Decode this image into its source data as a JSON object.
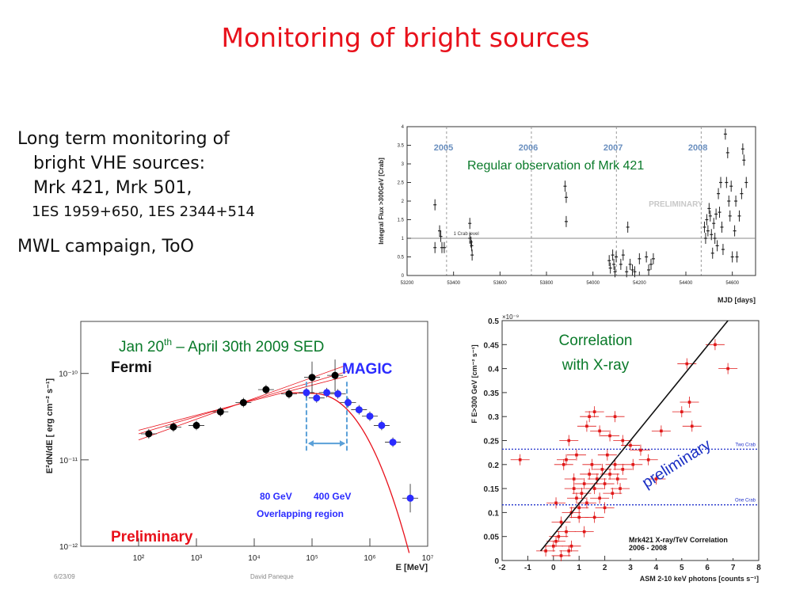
{
  "slide": {
    "title": "Monitoring of bright sources",
    "bullets": {
      "line1": "Long term monitoring of",
      "line2": "bright VHE sources:",
      "line3": "Mrk 421, Mrk 501,",
      "line4": "1ES 1959+650, 1ES 2344+514",
      "line5": "MWL campaign, ToO"
    }
  },
  "chart_data": [
    {
      "type": "scatter",
      "title": "",
      "annotation": "Regular observation of Mrk 421",
      "xlabel": "MJD [days]",
      "ylabel": "Integral Flux >300GeV [Crab]",
      "xlim": [
        53200,
        54700
      ],
      "ylim": [
        0,
        4
      ],
      "xticks": [
        "53200",
        "53400",
        "53600",
        "53800",
        "54000",
        "54200",
        "54400",
        "54600"
      ],
      "yticks": [
        "0",
        "0.5",
        "1",
        "1.5",
        "2",
        "2.5",
        "3",
        "3.5",
        "4"
      ],
      "year_labels": [
        "2005",
        "2006",
        "2007",
        "2008"
      ],
      "year_bounds": [
        53370,
        53735,
        54101,
        54466
      ],
      "reference_line": {
        "label": "1 Crab level",
        "y": 1
      },
      "watermark": "PRELIMINARY",
      "points": [
        [
          53320,
          1.9
        ],
        [
          53320,
          0.75
        ],
        [
          53340,
          1.2
        ],
        [
          53345,
          1.05
        ],
        [
          53350,
          0.75
        ],
        [
          53360,
          0.75
        ],
        [
          53470,
          1.4
        ],
        [
          53470,
          1.0
        ],
        [
          53475,
          0.9
        ],
        [
          53480,
          0.55
        ],
        [
          53478,
          0.8
        ],
        [
          53880,
          2.4
        ],
        [
          53885,
          2.1
        ],
        [
          53885,
          1.45
        ],
        [
          54070,
          0.4
        ],
        [
          54075,
          0.2
        ],
        [
          54085,
          0.55
        ],
        [
          54090,
          0.3
        ],
        [
          54095,
          0.1
        ],
        [
          54100,
          0.5
        ],
        [
          54120,
          0.3
        ],
        [
          54130,
          0.55
        ],
        [
          54145,
          0.1
        ],
        [
          54150,
          1.3
        ],
        [
          54160,
          0.3
        ],
        [
          54170,
          0.15
        ],
        [
          54180,
          0.1
        ],
        [
          54200,
          0.45
        ],
        [
          54230,
          0.5
        ],
        [
          54240,
          0.15
        ],
        [
          54250,
          0.3
        ],
        [
          54260,
          0.45
        ],
        [
          54480,
          1.3
        ],
        [
          54485,
          1.0
        ],
        [
          54490,
          1.5
        ],
        [
          54495,
          1.2
        ],
        [
          54500,
          1.8
        ],
        [
          54505,
          1.6
        ],
        [
          54510,
          1.1
        ],
        [
          54515,
          0.6
        ],
        [
          54520,
          1.4
        ],
        [
          54525,
          1.0
        ],
        [
          54530,
          1.65
        ],
        [
          54535,
          0.8
        ],
        [
          54540,
          2.2
        ],
        [
          54545,
          1.7
        ],
        [
          54550,
          2.5
        ],
        [
          54555,
          1.3
        ],
        [
          54560,
          0.7
        ],
        [
          54570,
          3.8
        ],
        [
          54575,
          2.5
        ],
        [
          54580,
          3.3
        ],
        [
          54585,
          2.0
        ],
        [
          54590,
          1.6
        ],
        [
          54595,
          2.4
        ],
        [
          54600,
          0.5
        ],
        [
          54610,
          1.2
        ],
        [
          54615,
          2.0
        ],
        [
          54620,
          0.5
        ],
        [
          54630,
          1.6
        ],
        [
          54640,
          2.2
        ],
        [
          54645,
          3.4
        ],
        [
          54650,
          3.1
        ],
        [
          54660,
          2.5
        ]
      ]
    },
    {
      "type": "scatter",
      "title": "",
      "annotation": "Jan 20th – April 30th 2009 SED",
      "annotation_sup": "th",
      "annotation_parts": [
        "Jan 20",
        " – April 30th 2009 SED"
      ],
      "xlabel": "E [MeV]",
      "ylabel": "E²dN/dE [ erg cm⁻² s⁻¹]",
      "xscale": "log",
      "yscale": "log",
      "xlim": [
        10,
        10000000.0
      ],
      "ylim": [
        1e-12,
        4e-10
      ],
      "xticks": [
        "10²",
        "10³",
        "10⁴",
        "10⁵",
        "10⁶",
        "10⁷"
      ],
      "yticks": [
        "10⁻¹²",
        "10⁻¹¹",
        "10⁻¹⁰"
      ],
      "labels": [
        "Fermi",
        "MAGIC",
        "Preliminary",
        "80 GeV",
        "400 GeV",
        "Overlapping region"
      ],
      "footer": [
        "6/23/09",
        "David Paneque"
      ],
      "series": [
        {
          "name": "Fermi",
          "color": "#000000",
          "x": [
            150,
            400,
            1000,
            2600,
            6500,
            16000,
            40000,
            100000,
            250000
          ],
          "y": [
            2e-11,
            2.4e-11,
            2.5e-11,
            3.6e-11,
            4.6e-11,
            6.5e-11,
            5.8e-11,
            9e-11,
            9.5e-11
          ]
        },
        {
          "name": "MAGIC",
          "color": "#2b2bff",
          "x": [
            80000,
            120000,
            180000,
            280000,
            420000,
            650000,
            1000000,
            1600000,
            2500000,
            5000000
          ],
          "y": [
            6e-11,
            5.2e-11,
            6e-11,
            5.8e-11,
            4.6e-11,
            3.8e-11,
            3.2e-11,
            2.5e-11,
            1.6e-11,
            3.6e-12
          ]
        }
      ]
    },
    {
      "type": "scatter",
      "title": "",
      "annotation": "Correlation with X-ray",
      "annotation_lines": [
        "Correlation",
        "with X-ray"
      ],
      "xlabel": "ASM 2-10 keV photons [counts s⁻¹]",
      "ylabel": "F E>300 GeV [cm⁻² s⁻¹]",
      "y_multiplier": "×10⁻⁹",
      "xlim": [
        -2,
        8
      ],
      "ylim": [
        0,
        0.5
      ],
      "xticks": [
        "-2",
        "-1",
        "0",
        "1",
        "2",
        "3",
        "4",
        "5",
        "6",
        "7",
        "8"
      ],
      "yticks": [
        "0",
        "0.05",
        "0.1",
        "0.15",
        "0.2",
        "0.25",
        "0.3",
        "0.35",
        "0.4",
        "0.45",
        "0.5"
      ],
      "reference_lines": [
        {
          "label": "Two Crab",
          "y": 0.232
        },
        {
          "label": "One Crab",
          "y": 0.116
        }
      ],
      "legend": [
        "Mrk421 X-ray/TeV Correlation",
        "2006 - 2008"
      ],
      "watermark": "preliminary",
      "fit_line": {
        "x": [
          -0.5,
          6.8
        ],
        "y": [
          0.02,
          0.5
        ]
      },
      "points": [
        [
          -1.3,
          0.21
        ],
        [
          -0.3,
          0.02
        ],
        [
          0,
          0.03
        ],
        [
          0.1,
          0.12
        ],
        [
          0.3,
          0.08
        ],
        [
          0.2,
          0.05
        ],
        [
          0.5,
          0.06
        ],
        [
          0.6,
          0.02
        ],
        [
          0.7,
          0.1
        ],
        [
          0.8,
          0.15
        ],
        [
          0.9,
          0.13
        ],
        [
          1.0,
          0.11
        ],
        [
          0.4,
          0.2
        ],
        [
          0.5,
          0.21
        ],
        [
          0.8,
          0.17
        ],
        [
          1.0,
          0.09
        ],
        [
          1.1,
          0.14
        ],
        [
          1.2,
          0.16
        ],
        [
          1.3,
          0.12
        ],
        [
          1.4,
          0.18
        ],
        [
          1.5,
          0.2
        ],
        [
          1.6,
          0.15
        ],
        [
          1.7,
          0.17
        ],
        [
          1.8,
          0.13
        ],
        [
          1.9,
          0.19
        ],
        [
          2.0,
          0.16
        ],
        [
          2.1,
          0.22
        ],
        [
          2.2,
          0.18
        ],
        [
          2.3,
          0.14
        ],
        [
          2.4,
          0.2
        ],
        [
          2.5,
          0.17
        ],
        [
          2.6,
          0.15
        ],
        [
          2.7,
          0.19
        ],
        [
          1.3,
          0.28
        ],
        [
          1.4,
          0.3
        ],
        [
          1.6,
          0.31
        ],
        [
          1.8,
          0.27
        ],
        [
          2.2,
          0.26
        ],
        [
          2.4,
          0.3
        ],
        [
          2.7,
          0.25
        ],
        [
          3.0,
          0.24
        ],
        [
          3.1,
          0.2
        ],
        [
          3.4,
          0.23
        ],
        [
          3.7,
          0.21
        ],
        [
          4.0,
          0.17
        ],
        [
          4.2,
          0.27
        ],
        [
          5.0,
          0.31
        ],
        [
          5.3,
          0.33
        ],
        [
          5.4,
          0.28
        ],
        [
          5.2,
          0.41
        ],
        [
          6.3,
          0.45
        ],
        [
          6.8,
          0.4
        ],
        [
          0.6,
          0.25
        ],
        [
          0.9,
          0.22
        ],
        [
          1.2,
          0.06
        ],
        [
          1.6,
          0.09
        ],
        [
          2.0,
          0.11
        ],
        [
          0.1,
          0.04
        ],
        [
          0.3,
          0.01
        ],
        [
          0.7,
          0.03
        ]
      ]
    }
  ],
  "colors": {
    "title": "#e8111b",
    "fermi": "#000000",
    "magic": "#2b2bff",
    "preliminary": "#e8111b",
    "annotation": "#0a7a2a",
    "corr_points": "#e01818",
    "crab_lines": "#2233cc"
  }
}
